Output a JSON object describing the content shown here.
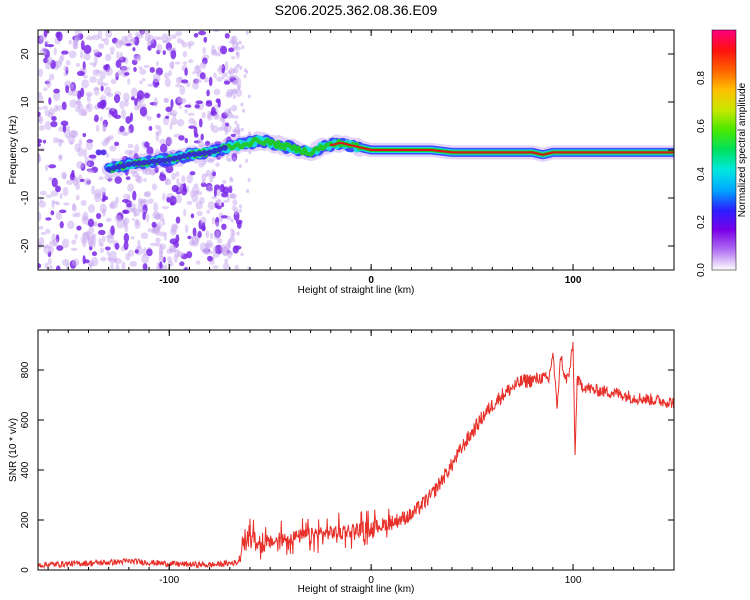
{
  "title": "S206.2025.362.08.36.E09",
  "colors": {
    "snr_line": "#e8302a",
    "track_core": "#d81818",
    "track_edge": "#20c830",
    "track_outer": "#18d8e0",
    "noise": "#7a28e8",
    "noise_light": "#c8a8f0"
  },
  "chart_data": [
    {
      "type": "heatmap",
      "name": "spectrogram",
      "xlabel": "Height of straight line (km)",
      "ylabel": "Frequency (Hz)",
      "xlim": [
        -165,
        150
      ],
      "ylim": [
        -25,
        25
      ],
      "xticks": [
        -100,
        0,
        100
      ],
      "xtick_labels": [
        "-100",
        "0",
        "100"
      ],
      "yticks": [
        -20,
        -10,
        0,
        10,
        20
      ],
      "ytick_labels": [
        "-20",
        "-10",
        "0",
        "10",
        "20"
      ],
      "colorbar": {
        "label": "Normalized spectral amplitude",
        "range": [
          0,
          1
        ],
        "ticks": [
          0.0,
          0.2,
          0.4,
          0.6,
          0.8
        ],
        "tick_labels": [
          "0.0",
          "0.2",
          "0.4",
          "0.6",
          "0.8"
        ],
        "colors": [
          "#ffffff",
          "#b070f0",
          "#7a00e8",
          "#2a20ff",
          "#00a8ff",
          "#00e8e0",
          "#00e060",
          "#48e800",
          "#c8e800",
          "#ffc000",
          "#ff6000",
          "#ff1010",
          "#ff0080"
        ]
      },
      "noise_region": [
        -165,
        -65
      ],
      "track": {
        "height_km": [
          -130,
          -120,
          -110,
          -100,
          -90,
          -80,
          -72,
          -65,
          -60,
          -55,
          -50,
          -45,
          -40,
          -35,
          -30,
          -25,
          -20,
          -15,
          -10,
          -5,
          0,
          10,
          20,
          30,
          40,
          50,
          60,
          70,
          80,
          85,
          90,
          100,
          110,
          120,
          130,
          140,
          150
        ],
        "frequency_hz": [
          -4,
          -3,
          -2.5,
          -2,
          -1,
          -0.5,
          0.5,
          1,
          1.5,
          2,
          1.5,
          1,
          0.5,
          0,
          -0.5,
          0.5,
          1,
          1.5,
          1,
          0.5,
          0,
          0,
          0,
          0,
          -0.5,
          -0.5,
          -0.5,
          -0.5,
          -0.5,
          -1,
          -0.5,
          -0.5,
          -0.5,
          -0.5,
          -0.5,
          -0.5,
          -0.5
        ],
        "amplitude": [
          0.3,
          0.25,
          0.2,
          0.15,
          0.15,
          0.2,
          0.35,
          0.45,
          0.55,
          0.6,
          0.6,
          0.65,
          0.7,
          0.65,
          0.7,
          0.75,
          0.8,
          0.85,
          0.85,
          0.9,
          0.95,
          0.95,
          0.95,
          0.95,
          0.95,
          0.95,
          0.95,
          0.95,
          0.95,
          0.9,
          0.95,
          0.95,
          0.95,
          0.95,
          0.95,
          0.95,
          0.95
        ]
      }
    },
    {
      "type": "line",
      "name": "snr",
      "xlabel": "Height of straight line (km)",
      "ylabel": "SNR (10 * v/v)",
      "xlim": [
        -165,
        150
      ],
      "ylim": [
        0,
        960
      ],
      "xticks": [
        -100,
        0,
        100
      ],
      "xtick_labels": [
        "-100",
        "0",
        "100"
      ],
      "yticks": [
        0,
        200,
        400,
        600,
        800
      ],
      "ytick_labels": [
        "0",
        "200",
        "400",
        "600",
        "800"
      ],
      "series": [
        {
          "name": "SNR",
          "x": [
            -165,
            -150,
            -130,
            -120,
            -100,
            -80,
            -66,
            -63,
            -60,
            -55,
            -50,
            -40,
            -30,
            -20,
            -10,
            0,
            10,
            20,
            25,
            30,
            35,
            40,
            45,
            50,
            55,
            60,
            65,
            70,
            75,
            80,
            85,
            88,
            90,
            92,
            94,
            96,
            98,
            100,
            101,
            102,
            104,
            110,
            120,
            130,
            140,
            150
          ],
          "y": [
            20,
            25,
            30,
            35,
            25,
            20,
            30,
            100,
            150,
            90,
            110,
            130,
            140,
            150,
            160,
            170,
            190,
            220,
            260,
            300,
            360,
            420,
            490,
            550,
            610,
            660,
            700,
            730,
            755,
            760,
            770,
            760,
            870,
            650,
            860,
            760,
            780,
            900,
            450,
            760,
            740,
            720,
            710,
            690,
            680,
            670
          ]
        }
      ]
    }
  ]
}
